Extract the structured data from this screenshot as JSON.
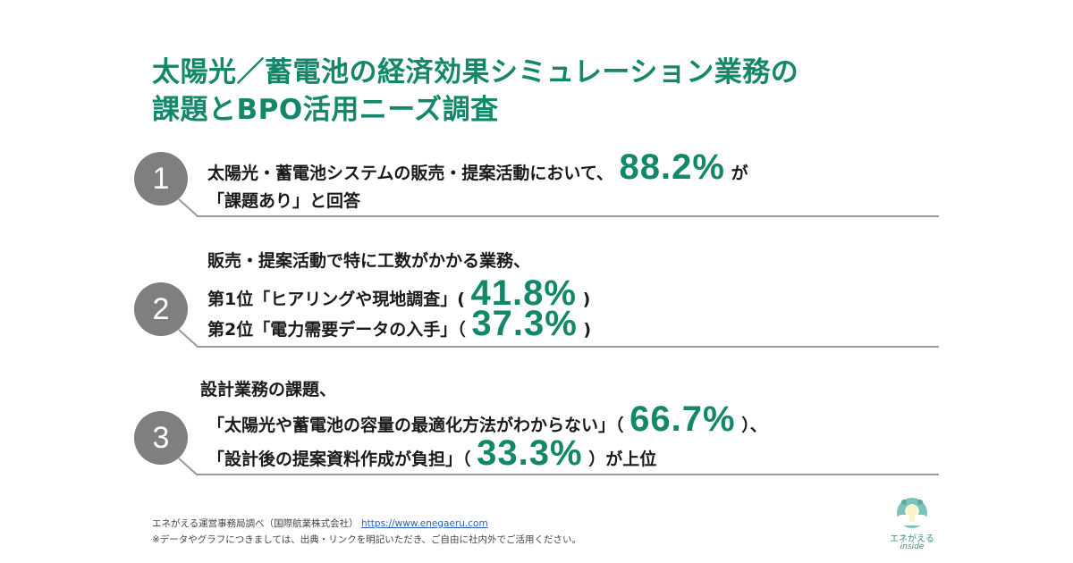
{
  "title": {
    "line1": "太陽光／蓄電池の経済効果シミュレーション業務の",
    "line2": "課題とBPO活用ニーズ調査"
  },
  "items": [
    {
      "number": "1",
      "l1_pre": "太陽光・蓄電池システムの販売・提案活動において、",
      "l1_pct": "88.2%",
      "l1_post": "が",
      "l2": "「課題あり」と回答"
    },
    {
      "number": "2",
      "l1": "販売・提案活動で特に工数がかかる業務、",
      "l2_pre": "第1位「ヒアリングや現地調査」(",
      "l2_pct": "41.8%",
      "l2_post": ")",
      "l3_pre": "第2位「電力需要データの入手」（",
      "l3_pct": "37.3%",
      "l3_post": ")"
    },
    {
      "number": "3",
      "l1": "設計業務の課題、",
      "l2_pre": "「太陽光や蓄電池の容量の最適化方法がわからない」（",
      "l2_pct": "66.7%",
      "l2_post": "）、",
      "l3_pre": "「設計後の提案資料作成が負担」（",
      "l3_pct": "33.3%",
      "l3_post": "）が上位"
    }
  ],
  "footer": {
    "source": "エネがえる運営事務局調べ（国際航業株式会社）",
    "url": "https://www.enegaeru.com",
    "note": "※データやグラフにつきましては、出典・リンクを明記いただき、ご自由に社内外でご活用ください。"
  },
  "logo": {
    "name": "エネがえる",
    "sub": "inside"
  },
  "colors": {
    "accent": "#12876a",
    "circle": "#7f7f7f",
    "rule": "#9a9a9a"
  }
}
